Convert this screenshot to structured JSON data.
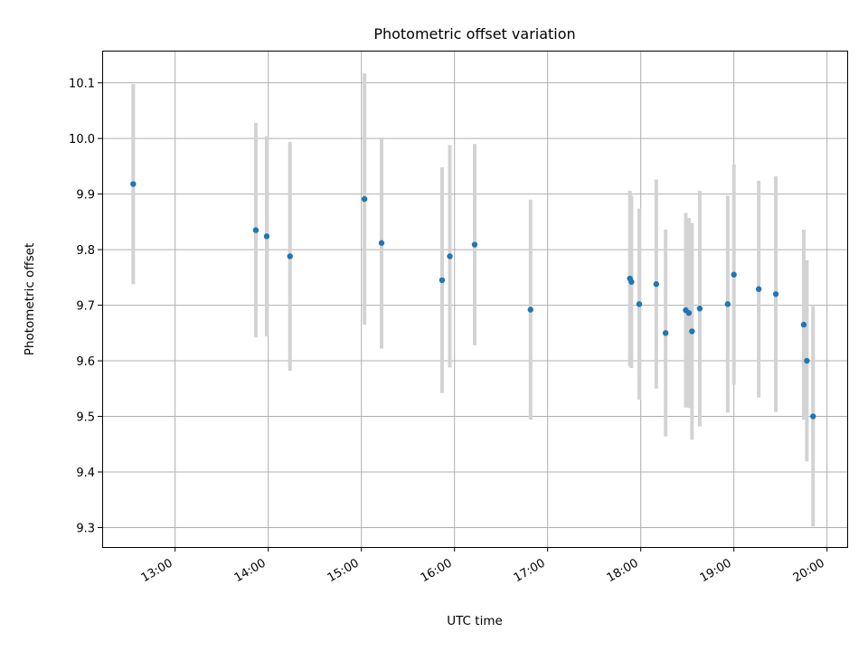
{
  "chart_data": {
    "type": "scatter",
    "title": "Photometric offset variation",
    "xlabel": "UTC time",
    "ylabel": "Photometric offset",
    "xlim": [
      "12:13",
      "20:13"
    ],
    "ylim": [
      9.265,
      10.158
    ],
    "x_ticks": [
      "13:00",
      "14:00",
      "15:00",
      "16:00",
      "17:00",
      "18:00",
      "19:00",
      "20:00"
    ],
    "y_ticks": [
      9.3,
      9.4,
      9.5,
      9.6,
      9.7,
      9.8,
      9.9,
      10.0,
      10.1
    ],
    "grid": true,
    "marker_color": "#1f77b4",
    "errorbar_color": "#d3d3d3",
    "points": [
      {
        "x": "12:33",
        "y": 9.918,
        "err": 0.18
      },
      {
        "x": "13:52",
        "y": 9.835,
        "err": 0.193
      },
      {
        "x": "13:59",
        "y": 9.824,
        "err": 0.18
      },
      {
        "x": "14:14",
        "y": 9.788,
        "err": 0.206
      },
      {
        "x": "15:02",
        "y": 9.891,
        "err": 0.226
      },
      {
        "x": "15:13",
        "y": 9.812,
        "err": 0.19
      },
      {
        "x": "15:52",
        "y": 9.745,
        "err": 0.203
      },
      {
        "x": "15:57",
        "y": 9.788,
        "err": 0.2
      },
      {
        "x": "16:13",
        "y": 9.809,
        "err": 0.181
      },
      {
        "x": "16:49",
        "y": 9.692,
        "err": 0.198
      },
      {
        "x": "17:53",
        "y": 9.748,
        "err": 0.158
      },
      {
        "x": "17:54",
        "y": 9.742,
        "err": 0.155
      },
      {
        "x": "17:59",
        "y": 9.702,
        "err": 0.172
      },
      {
        "x": "18:10",
        "y": 9.738,
        "err": 0.188
      },
      {
        "x": "18:16",
        "y": 9.65,
        "err": 0.186
      },
      {
        "x": "18:29",
        "y": 9.691,
        "err": 0.175
      },
      {
        "x": "18:31",
        "y": 9.686,
        "err": 0.171
      },
      {
        "x": "18:33",
        "y": 9.653,
        "err": 0.195
      },
      {
        "x": "18:38",
        "y": 9.694,
        "err": 0.212
      },
      {
        "x": "18:56",
        "y": 9.702,
        "err": 0.195
      },
      {
        "x": "19:00",
        "y": 9.755,
        "err": 0.198
      },
      {
        "x": "19:16",
        "y": 9.729,
        "err": 0.195
      },
      {
        "x": "19:27",
        "y": 9.72,
        "err": 0.212
      },
      {
        "x": "19:45",
        "y": 9.665,
        "err": 0.171
      },
      {
        "x": "19:47",
        "y": 9.6,
        "err": 0.181
      },
      {
        "x": "19:51",
        "y": 9.5,
        "err": 0.198
      }
    ]
  }
}
